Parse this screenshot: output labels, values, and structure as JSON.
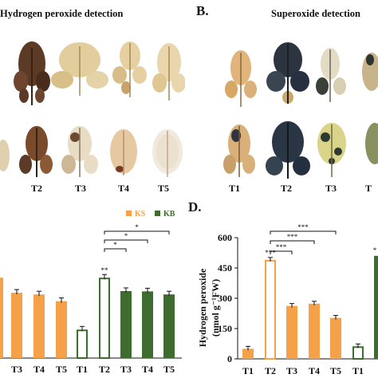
{
  "panel_A": {
    "title": "Hydrogen peroxide detection",
    "labels": [
      "T2",
      "T3",
      "T4",
      "T5"
    ]
  },
  "panel_B": {
    "letter": "B.",
    "title": "Superoxide detection",
    "labels": [
      "T1",
      "T2",
      "T3",
      "T"
    ]
  },
  "panel_C": {
    "legend": [
      {
        "name": "KS",
        "color": "#F5A14A"
      },
      {
        "name": "KB",
        "color": "#3E6B2E"
      }
    ]
  },
  "panel_D": {
    "letter": "D.",
    "ylabel_line1": "Hydrogen peroxide",
    "ylabel_line2": "(nmol g⁻¹FW)"
  },
  "colors": {
    "orange": "#F5A14A",
    "green": "#3E6B2E"
  },
  "chart_data": [
    {
      "type": "bar",
      "panel": "C",
      "categories": [
        "T3",
        "T4",
        "T5",
        "T1",
        "T2",
        "T3",
        "T4",
        "T5"
      ],
      "series": [
        {
          "name": "KS",
          "values": [
            390,
            380,
            340,
            null,
            null,
            null,
            null,
            null
          ]
        },
        {
          "name": "KB",
          "values": [
            null,
            null,
            null,
            170,
            480,
            400,
            398,
            380
          ]
        }
      ],
      "partial_bar": {
        "value": 480,
        "color": "#F5A14A"
      },
      "annotations": [
        "**",
        "*",
        "*",
        "*"
      ]
    },
    {
      "type": "bar",
      "panel": "D",
      "categories": [
        "T1",
        "T2",
        "T3",
        "T4",
        "T5",
        "T1"
      ],
      "ylim": [
        0,
        600
      ],
      "yticks": [
        0,
        150,
        300,
        450,
        600
      ],
      "series": [
        {
          "name": "KS",
          "values": [
            50,
            490,
            262,
            273,
            203,
            null
          ]
        },
        {
          "name": "KB",
          "values": [
            null,
            null,
            null,
            null,
            null,
            62
          ]
        }
      ],
      "partial_bar": {
        "value": 510,
        "color": "#3E6B2E"
      },
      "annotations": [
        "***",
        "***",
        "***",
        "***",
        "*"
      ]
    }
  ]
}
